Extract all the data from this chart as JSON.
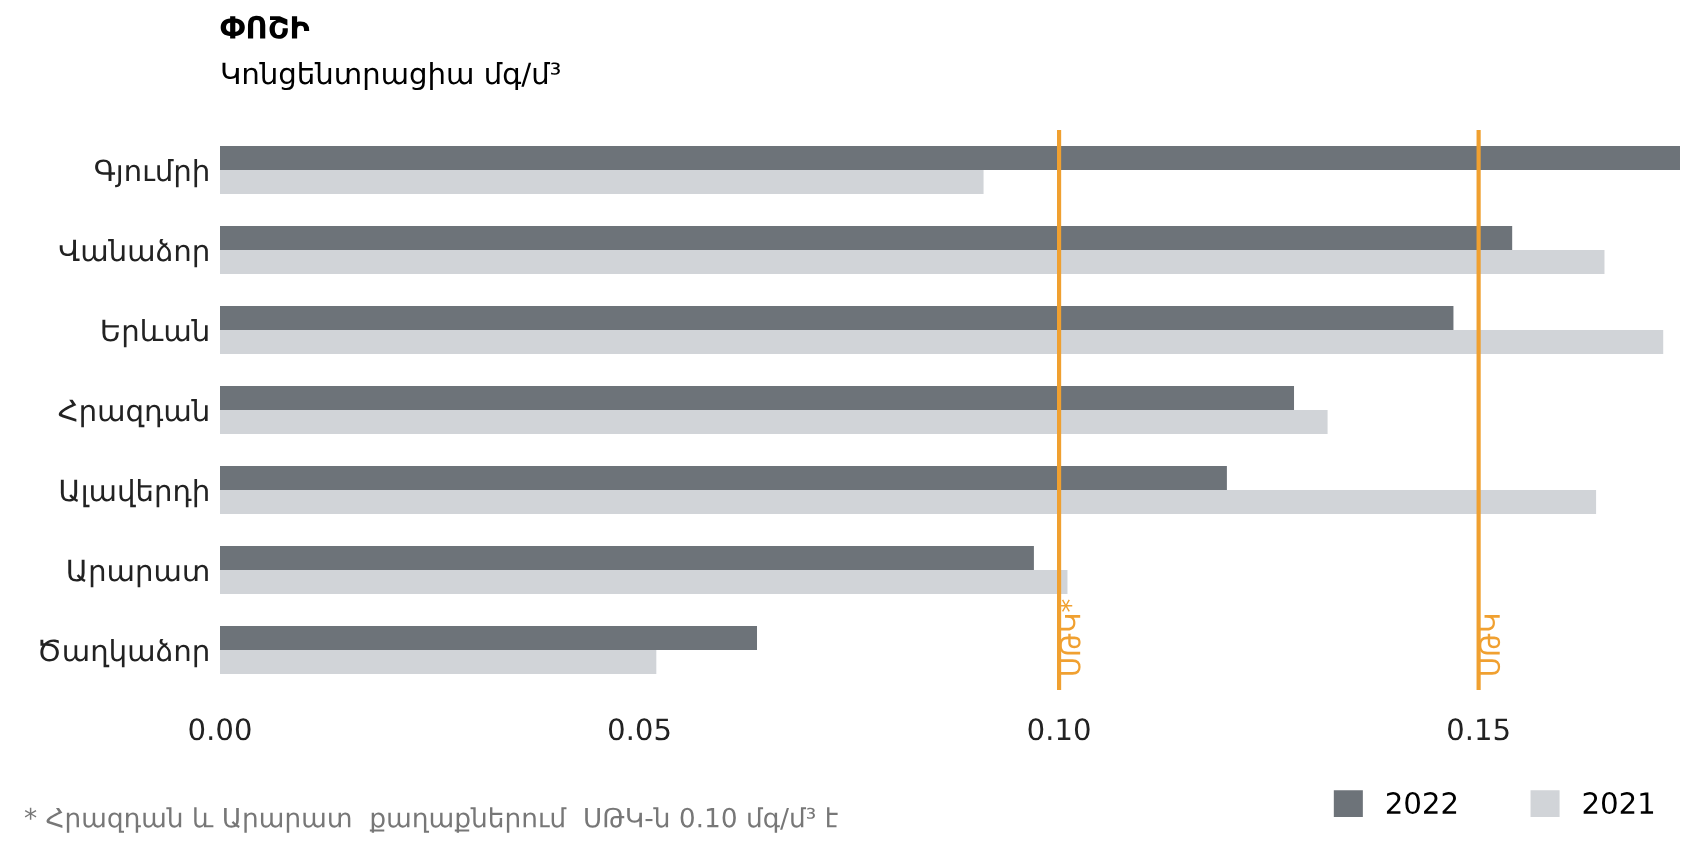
{
  "chart_data": {
    "type": "bar",
    "orientation": "horizontal",
    "title": "ՓՈՇԻ",
    "subtitle": "Կոնցենտրացիա մգ/մ³",
    "categories": [
      "Գյումրի",
      "Վանաձոր",
      "Երևան",
      "Հրազդան",
      "Ալավերդի",
      "Արարատ",
      "Ծաղկաձոր"
    ],
    "series": [
      {
        "name": "2022",
        "color": "#6d7379",
        "values": [
          0.174,
          0.154,
          0.147,
          0.128,
          0.12,
          0.097,
          0.064
        ]
      },
      {
        "name": "2021",
        "color": "#d1d4d8",
        "values": [
          0.091,
          0.165,
          0.172,
          0.132,
          0.164,
          0.101,
          0.052
        ]
      }
    ],
    "xlim": [
      0,
      0.174
    ],
    "xticks": [
      {
        "value": 0,
        "label": "0.00"
      },
      {
        "value": 0.05,
        "label": "0.05"
      },
      {
        "value": 0.1,
        "label": "0.10"
      },
      {
        "value": 0.15,
        "label": "0.15"
      }
    ],
    "ref_lines": [
      {
        "axis": "x",
        "value": 0.1,
        "label": "ՍԹԿ*",
        "color": "#f0a030"
      },
      {
        "axis": "x",
        "value": 0.15,
        "label": "ՍԹԿ",
        "color": "#f0a030"
      }
    ],
    "annotations": [
      "* Հրազդան և Արարատ  քաղաքներում  ՍԹԿ-ն 0.10 մգ/մ³ է"
    ],
    "legend": "bottom right",
    "grid": false
  }
}
